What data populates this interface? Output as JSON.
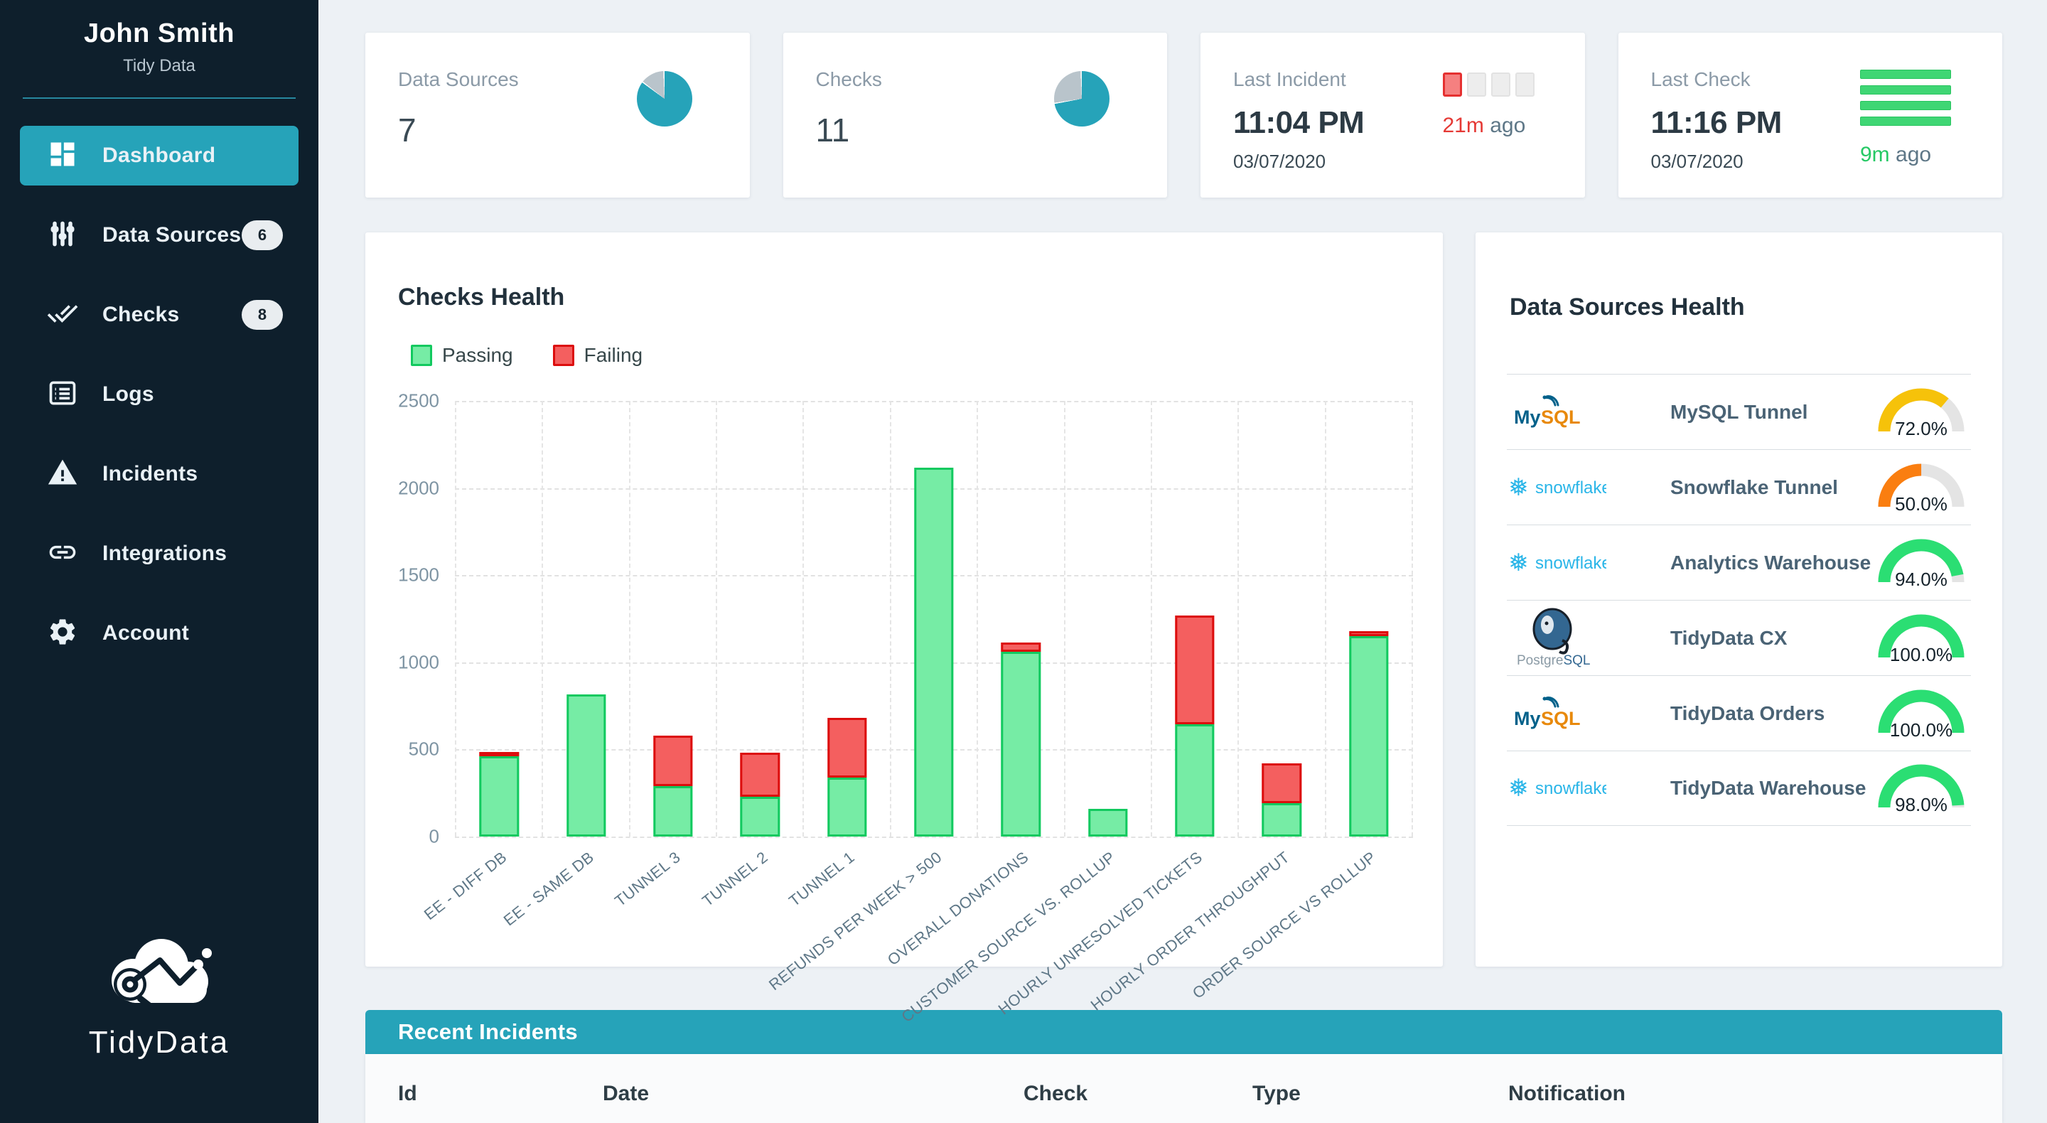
{
  "colors": {
    "accent_teal": "#26A3B9",
    "sidebar_bg": "#0E1F2C",
    "pie_track": "#B9C4CB",
    "gauge_track": "#E4E4E4",
    "passing_fill": "#76ECA5",
    "passing_border": "#12C95F",
    "failing_fill": "#F45F5F",
    "failing_border": "#DC0D0D"
  },
  "sidebar": {
    "user_name": "John Smith",
    "user_org": "Tidy Data",
    "logo_text": "TidyData",
    "items": [
      {
        "label": "Dashboard",
        "icon": "dashboard-icon",
        "active": true,
        "badge": null
      },
      {
        "label": "Data Sources",
        "icon": "data-sources-icon",
        "active": false,
        "badge": "6"
      },
      {
        "label": "Checks",
        "icon": "checks-icon",
        "active": false,
        "badge": "8"
      },
      {
        "label": "Logs",
        "icon": "logs-icon",
        "active": false,
        "badge": null
      },
      {
        "label": "Incidents",
        "icon": "incidents-icon",
        "active": false,
        "badge": null
      },
      {
        "label": "Integrations",
        "icon": "integrations-icon",
        "active": false,
        "badge": null
      },
      {
        "label": "Account",
        "icon": "account-icon",
        "active": false,
        "badge": null
      }
    ]
  },
  "cards": {
    "data_sources": {
      "title": "Data Sources",
      "value": "7",
      "pie_pct": 85.7,
      "pie_color": "#26A3B9"
    },
    "checks": {
      "title": "Checks",
      "value": "11",
      "pie_pct": 72.7,
      "pie_color": "#26A3B9"
    },
    "last_incident": {
      "title": "Last Incident",
      "time": "11:04 PM",
      "date": "03/07/2020",
      "ago_value": "21m",
      "ago_suffix": " ago",
      "ago_color": "#E53935",
      "squares_total": 4,
      "squares_active": 1
    },
    "last_check": {
      "title": "Last Check",
      "time": "11:16 PM",
      "date": "03/07/2020",
      "ago_value": "9m",
      "ago_suffix": " ago",
      "ago_color": "#26C965",
      "lines_total": 4
    }
  },
  "chart_data": {
    "type": "bar",
    "stacked": true,
    "title": "Checks Health",
    "categories": [
      "EE - DIFF DB",
      "EE - SAME DB",
      "TUNNEL 3",
      "TUNNEL 2",
      "TUNNEL 1",
      "REFUNDS PER WEEK > 500",
      "OVERALL DONATIONS",
      "CUSTOMER SOURCE VS. ROLLUP",
      "HOURLY UNRESOLVED TICKETS",
      "HOURLY ORDER THROUGHPUT",
      "ORDER SOURCE VS ROLLUP"
    ],
    "series": [
      {
        "name": "Passing",
        "fill": "#76ECA5",
        "border": "#12C95F",
        "values": [
          460,
          815,
          290,
          230,
          340,
          2115,
          1060,
          160,
          645,
          190,
          1150
        ]
      },
      {
        "name": "Failing",
        "fill": "#F45F5F",
        "border": "#DC0D0D",
        "values": [
          20,
          0,
          290,
          250,
          340,
          0,
          55,
          0,
          625,
          230,
          30
        ]
      }
    ],
    "xlabel": "",
    "ylabel": "",
    "ylim": [
      0,
      2500
    ],
    "ytick_step": 500,
    "grid": "dashed",
    "legend_position": "top-left"
  },
  "health": {
    "title": "Data Sources Health",
    "rows": [
      {
        "logo": "mysql-logo",
        "name": "MySQL Tunnel",
        "value": "72.0%",
        "pct": 72,
        "color": "#F6C20A"
      },
      {
        "logo": "snowflake-logo",
        "name": "Snowflake Tunnel",
        "value": "50.0%",
        "pct": 50,
        "color": "#FA7E10"
      },
      {
        "logo": "snowflake-logo",
        "name": "Analytics Warehouse",
        "value": "94.0%",
        "pct": 94,
        "color": "#2BDE73"
      },
      {
        "logo": "postgresql-logo",
        "name": "TidyData CX",
        "value": "100.0%",
        "pct": 100,
        "color": "#2BDE73"
      },
      {
        "logo": "mysql-logo",
        "name": "TidyData Orders",
        "value": "100.0%",
        "pct": 100,
        "color": "#2BDE73"
      },
      {
        "logo": "snowflake-logo",
        "name": "TidyData Warehouse",
        "value": "98.0%",
        "pct": 98,
        "color": "#2BDE73"
      }
    ]
  },
  "incidents": {
    "title": "Recent Incidents",
    "columns": [
      "Id",
      "Date",
      "Check",
      "Type",
      "Notification"
    ]
  }
}
